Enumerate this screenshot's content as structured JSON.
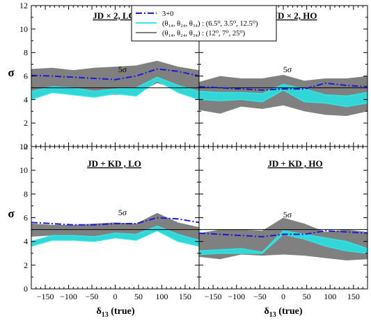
{
  "figure": {
    "ylabel": "σ",
    "xlabel_main": "δ",
    "xlabel_sub": "13",
    "xlabel_tail": " (true)",
    "five_sigma_label": "5σ"
  },
  "legend": {
    "entries": [
      {
        "key": "three_plus_zero",
        "label": "3+0",
        "style": "dash",
        "color": "#1a1adc"
      },
      {
        "key": "cyan",
        "label": "(θ₁₄, θ₂₄, θ₃₄) : (6.5⁰, 3.5⁰, 12.5⁰)",
        "style": "line",
        "color": "#33e6e6"
      },
      {
        "key": "gray",
        "label": "(θ₁₄, θ₂₄, θ₃₄) : (12⁰, 7⁰, 25⁰)",
        "style": "line",
        "color": "#7f7f7f"
      }
    ]
  },
  "colors": {
    "dashed_line": "#1a1adc",
    "cyan_band": "#33d6d6",
    "cyan_edge": "#33e6e6",
    "gray_band": "#808080",
    "five_sigma_line": "#000000"
  },
  "chart_data": [
    {
      "type": "area",
      "panel": "top-left",
      "title": "JD × 2, LO",
      "x": [
        -180,
        -135,
        -90,
        -45,
        0,
        45,
        90,
        135,
        180
      ],
      "xlim": [
        -180,
        180
      ],
      "ylim": [
        0,
        12
      ],
      "xticks": [
        -150,
        -100,
        -50,
        0,
        50,
        100,
        150
      ],
      "yticks": [
        0,
        2,
        4,
        6,
        8,
        10,
        12
      ],
      "reference_line": 5,
      "series": [
        {
          "key": "gray",
          "lower": [
            4.6,
            4.7,
            4.6,
            4.5,
            4.4,
            4.5,
            5.4,
            4.9,
            4.6
          ],
          "upper": [
            6.6,
            6.7,
            6.5,
            6.7,
            6.8,
            6.9,
            7.3,
            6.8,
            6.5
          ]
        },
        {
          "key": "cyan",
          "lower": [
            4.0,
            4.6,
            4.4,
            4.2,
            4.5,
            4.3,
            5.6,
            4.6,
            4.0
          ],
          "upper": [
            4.7,
            5.1,
            5.0,
            4.7,
            4.9,
            5.0,
            5.9,
            5.2,
            4.7
          ]
        },
        {
          "key": "three_plus_zero",
          "values": [
            6.05,
            6.0,
            5.9,
            5.8,
            5.7,
            6.0,
            6.6,
            6.4,
            6.0
          ]
        }
      ]
    },
    {
      "type": "area",
      "panel": "top-right",
      "title": "JD × 2, HO",
      "x": [
        -180,
        -135,
        -90,
        -45,
        0,
        45,
        90,
        135,
        180
      ],
      "xlim": [
        -180,
        180
      ],
      "ylim": [
        0,
        12
      ],
      "xticks": [
        -150,
        -100,
        -50,
        0,
        50,
        100,
        150
      ],
      "yticks": [
        0,
        2,
        4,
        6,
        8,
        10,
        12
      ],
      "reference_line": 5,
      "series": [
        {
          "key": "gray",
          "lower": [
            3.1,
            2.8,
            3.4,
            3.2,
            3.5,
            3.0,
            2.7,
            2.6,
            3.0
          ],
          "upper": [
            5.5,
            6.0,
            5.8,
            5.8,
            6.1,
            5.6,
            5.8,
            5.8,
            6.0
          ]
        },
        {
          "key": "cyan",
          "lower": [
            4.0,
            3.9,
            4.0,
            3.8,
            4.8,
            3.8,
            3.7,
            3.4,
            3.7
          ],
          "upper": [
            4.7,
            4.6,
            4.6,
            4.5,
            5.3,
            4.9,
            4.4,
            4.3,
            4.6
          ]
        },
        {
          "key": "three_plus_zero",
          "values": [
            5.1,
            5.0,
            4.9,
            4.8,
            4.9,
            4.9,
            5.4,
            5.2,
            5.1
          ]
        }
      ]
    },
    {
      "type": "area",
      "panel": "bottom-left",
      "title": "JD + KD , LO",
      "x": [
        -180,
        -135,
        -90,
        -45,
        0,
        45,
        90,
        135,
        180
      ],
      "xlim": [
        -180,
        180
      ],
      "ylim": [
        0,
        12
      ],
      "xticks": [
        -150,
        -100,
        -50,
        0,
        50,
        100,
        150
      ],
      "yticks": [
        0,
        2,
        4,
        6,
        8,
        10,
        12
      ],
      "reference_line": 5,
      "series": [
        {
          "key": "gray",
          "lower": [
            4.4,
            4.5,
            4.4,
            4.3,
            4.6,
            4.4,
            5.3,
            4.6,
            4.1
          ],
          "upper": [
            5.5,
            5.4,
            5.4,
            5.5,
            5.6,
            5.5,
            6.4,
            5.6,
            5.2
          ]
        },
        {
          "key": "cyan",
          "lower": [
            3.6,
            4.1,
            4.1,
            4.0,
            4.3,
            4.1,
            4.9,
            4.0,
            3.6
          ],
          "upper": [
            4.0,
            4.5,
            4.5,
            4.4,
            4.7,
            4.6,
            5.3,
            4.6,
            4.1
          ]
        },
        {
          "key": "three_plus_zero",
          "values": [
            5.6,
            5.5,
            5.4,
            5.4,
            5.5,
            5.5,
            6.0,
            5.9,
            5.6
          ]
        }
      ]
    },
    {
      "type": "area",
      "panel": "bottom-right",
      "title": "JD + KD , HO",
      "x": [
        -180,
        -135,
        -90,
        -45,
        0,
        45,
        90,
        135,
        180
      ],
      "xlim": [
        -180,
        180
      ],
      "ylim": [
        0,
        12
      ],
      "xticks": [
        -150,
        -100,
        -50,
        0,
        50,
        100,
        150
      ],
      "yticks": [
        0,
        2,
        4,
        6,
        8,
        10,
        12
      ],
      "reference_line": 5,
      "series": [
        {
          "key": "gray",
          "lower": [
            2.7,
            2.5,
            2.9,
            2.8,
            2.9,
            2.8,
            2.6,
            2.4,
            2.5
          ],
          "upper": [
            4.7,
            5.0,
            5.0,
            4.9,
            6.0,
            5.5,
            4.8,
            5.0,
            4.8
          ]
        },
        {
          "key": "cyan",
          "lower": [
            2.9,
            3.0,
            3.0,
            3.0,
            4.6,
            4.2,
            3.6,
            3.2,
            3.0
          ],
          "upper": [
            3.2,
            3.3,
            3.4,
            3.1,
            4.9,
            4.6,
            4.3,
            4.0,
            3.4
          ]
        },
        {
          "key": "three_plus_zero",
          "values": [
            4.7,
            4.6,
            4.5,
            4.4,
            4.6,
            4.6,
            4.9,
            4.8,
            4.7
          ]
        }
      ]
    }
  ]
}
